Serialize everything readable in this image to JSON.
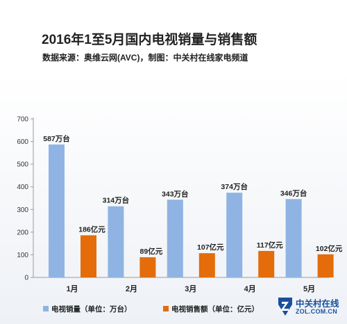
{
  "title": "2016年1至5月国内电视销量与销售额",
  "subtitle": "数据来源：奥维云网(AVC)，制图：中关村在线家电频道",
  "logo": {
    "main": "中关村在线",
    "sub": "ZOL.COM.CN"
  },
  "colors": {
    "sales_volume": "#8fb4e3",
    "sales_revenue": "#e46c0a"
  },
  "chart_data": {
    "type": "bar",
    "categories": [
      "1月",
      "2月",
      "3月",
      "4月",
      "5月"
    ],
    "series": [
      {
        "name": "电视销量（单位：万台）",
        "values": [
          587,
          314,
          343,
          374,
          346
        ],
        "labels": [
          "587万台",
          "314万台",
          "343万台",
          "374万台",
          "346万台"
        ]
      },
      {
        "name": "电视销售额（单位：亿元）",
        "values": [
          186,
          89,
          107,
          117,
          102
        ],
        "labels": [
          "186亿元",
          "89亿元",
          "107亿元",
          "117亿元",
          "102亿元"
        ]
      }
    ],
    "ylim": [
      0,
      700
    ],
    "yticks": [
      0,
      100,
      200,
      300,
      400,
      500,
      600,
      700
    ],
    "grid": false,
    "legend": "bottom"
  }
}
